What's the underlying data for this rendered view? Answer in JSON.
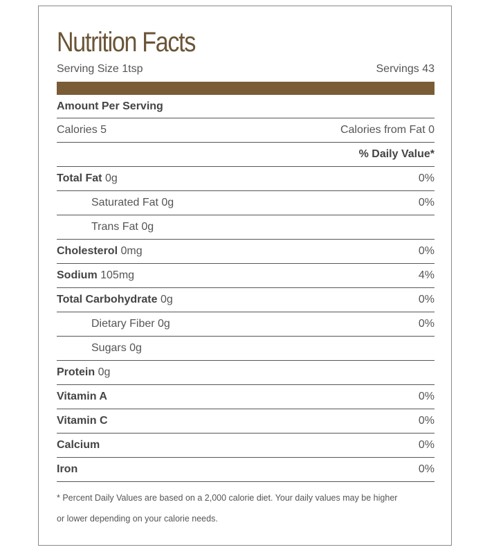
{
  "title": "Nutrition Facts",
  "serving": {
    "size": "Serving Size 1tsp",
    "servings": "Servings 43"
  },
  "amount_header": "Amount Per Serving",
  "calories": {
    "label": "Calories 5",
    "from_fat": "Calories from Fat 0"
  },
  "daily_value_header": "% Daily Value*",
  "nutrients": [
    {
      "name": "Total Fat",
      "amount": "0g",
      "dv": "0%"
    },
    {
      "name": "Saturated Fat",
      "amount": "0g",
      "dv": "0%"
    },
    {
      "name": "Trans Fat",
      "amount": "0g"
    },
    {
      "name": "Cholesterol",
      "amount": "0mg",
      "dv": "0%"
    },
    {
      "name": "Sodium",
      "amount": "105mg",
      "dv": "4%"
    },
    {
      "name": "Total Carbohydrate",
      "amount": "0g",
      "dv": "0%"
    },
    {
      "name": "Dietary Fiber",
      "amount": "0g",
      "dv": "0%"
    },
    {
      "name": "Sugars",
      "amount": "0g"
    },
    {
      "name": "Protein",
      "amount": "0g"
    },
    {
      "name": "Vitamin A",
      "dv": "0%"
    },
    {
      "name": "Vitamin C",
      "dv": "0%"
    },
    {
      "name": "Calcium",
      "dv": "0%"
    },
    {
      "name": "Iron",
      "dv": "0%"
    }
  ],
  "footnote": [
    "* Percent Daily Values are based on a 2,000 calorie diet. Your daily values may be higher",
    "or lower depending on your calorie needs."
  ]
}
